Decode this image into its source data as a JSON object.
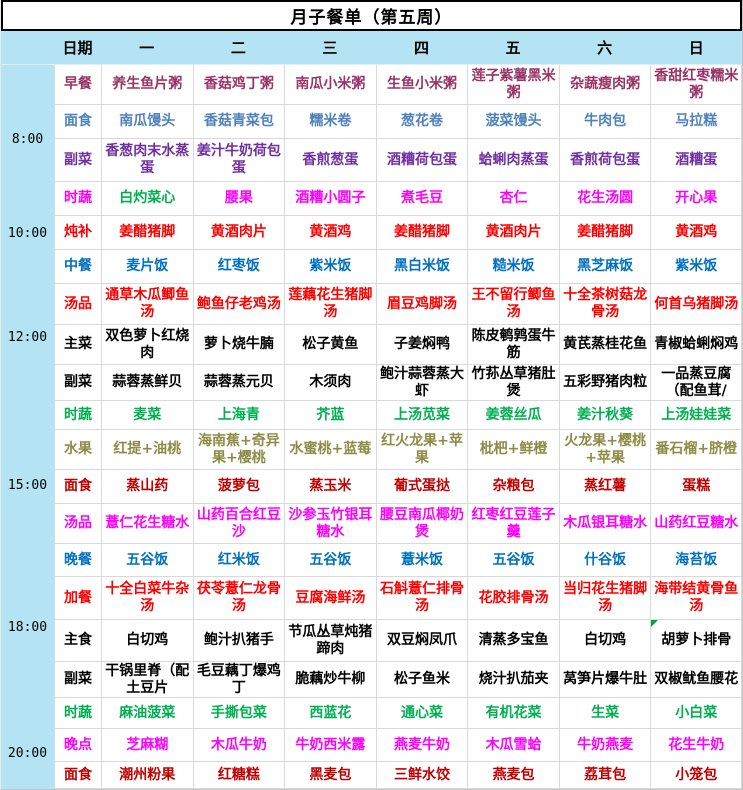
{
  "title": "月子餐单（第五周）",
  "header": {
    "date_label": "日期",
    "days": [
      "一",
      "二",
      "三",
      "四",
      "五",
      "六",
      "日"
    ]
  },
  "time_markers": [
    "8:00",
    "10:00",
    "12:00",
    "15:00",
    "18:00",
    "20:00"
  ],
  "colors": {
    "header_bg": "#B4E3F3",
    "time_strip_bg": "#B4E3F3",
    "grid_line": "#D9D9D9",
    "comment_marker": "#00A33C",
    "plum": "#993366",
    "soft_blue": "#4F81BD",
    "purple": "#7030A0",
    "magenta": "#FF00FF",
    "green": "#00B050",
    "red": "#FF0000",
    "blue": "#0070C0",
    "black": "#000000",
    "olive": "#8C8C46",
    "dark_red": "#C00000"
  },
  "rows": [
    {
      "label": "早餐",
      "color": "#993366",
      "cells": [
        "养生鱼片粥",
        "香菇鸡丁粥",
        "南瓜小米粥",
        "生鱼小米粥",
        "莲子紫薯黑米粥",
        "杂蔬瘦肉粥",
        "香甜红枣糯米粥"
      ]
    },
    {
      "label": "面食",
      "color": "#4F81BD",
      "cells": [
        "南瓜馒头",
        "香菇青菜包",
        "糯米卷",
        "葱花卷",
        "菠菜馒头",
        "牛肉包",
        "马拉糕"
      ]
    },
    {
      "label": "副菜",
      "color": "#7030A0",
      "cells": [
        "香葱肉末水蒸蛋",
        "姜汁牛奶荷包蛋",
        "香煎葱蛋",
        "酒糟荷包蛋",
        "蛤蜊肉蒸蛋",
        "香煎荷包蛋",
        "酒糟蛋"
      ]
    },
    {
      "label": "时蔬",
      "color": "#FF00FF",
      "cells": [
        "白灼菜心",
        "腰果",
        "酒糟小圆子",
        "煮毛豆",
        "杏仁",
        "花生汤圆",
        "开心果"
      ],
      "cell_colors": {
        "0": "#00B050"
      }
    },
    {
      "label": "炖补",
      "color": "#FF0000",
      "cells": [
        "姜醋猪脚",
        "黄酒肉片",
        "黄酒鸡",
        "姜醋猪脚",
        "黄酒肉片",
        "姜醋猪脚",
        "黄酒鸡"
      ]
    },
    {
      "label": "中餐",
      "color": "#0070C0",
      "cells": [
        "麦片饭",
        "红枣饭",
        "紫米饭",
        "黑白米饭",
        "糙米饭",
        "黑芝麻饭",
        "紫米饭"
      ]
    },
    {
      "label": "汤品",
      "color": "#FF0000",
      "cells": [
        "通草木瓜鲫鱼汤",
        "鲍鱼仔老鸡汤",
        "莲藕花生猪脚汤",
        "眉豆鸡脚汤",
        "王不留行鲫鱼汤",
        "十全茶树菇龙骨汤",
        "何首乌猪脚汤"
      ]
    },
    {
      "label": "主菜",
      "color": "#000000",
      "cells": [
        "双色萝卜红烧肉",
        "萝卜烧牛腩",
        "松子黄鱼",
        "子姜焖鸭",
        "陈皮鹌鹑蛋牛筋",
        "黄芪蒸桂花鱼",
        "青椒蛤蜊焖鸡"
      ]
    },
    {
      "label": "副菜",
      "color": "#000000",
      "cells": [
        "蒜蓉蒸鲜贝",
        "蒜蓉蒸元贝",
        "木须肉",
        "鲍汁蒜蓉蒸大虾",
        "竹荪丛草猪肚煲",
        "五彩野猪肉粒",
        "一品蒸豆腐（配鱼茸/"
      ]
    },
    {
      "label": "时蔬",
      "color": "#00B050",
      "cells": [
        "麦菜",
        "上海青",
        "芥蓝",
        "上汤苋菜",
        "姜蓉丝瓜",
        "姜汁秋葵",
        "上汤娃娃菜"
      ]
    },
    {
      "label": "水果",
      "color": "#8C8C46",
      "cells": [
        "红提+油桃",
        "海南蕉+奇异果+樱桃",
        "水蜜桃+蓝莓",
        "红火龙果+苹果",
        "枇杷+鲜橙",
        "火龙果+樱桃+苹果",
        "番石榴+脐橙"
      ]
    },
    {
      "label": "面食",
      "color": "#C00000",
      "cells": [
        "蒸山药",
        "菠萝包",
        "蒸玉米",
        "葡式蛋挞",
        "杂粮包",
        "蒸红薯",
        "蛋糕"
      ]
    },
    {
      "label": "汤品",
      "color": "#FF00FF",
      "cells": [
        "薏仁花生糖水",
        "山药百合红豆沙",
        "沙参玉竹银耳糖水",
        "腰豆南瓜椰奶煲",
        "红枣红豆莲子羹",
        "木瓜银耳糖水",
        "山药红豆糖水"
      ]
    },
    {
      "label": "晚餐",
      "color": "#0070C0",
      "cells": [
        "五谷饭",
        "红米饭",
        "五谷饭",
        "薏米饭",
        "五谷饭",
        "什谷饭",
        "海苔饭"
      ]
    },
    {
      "label": "加餐",
      "color": "#FF0000",
      "cells": [
        "十全白菜牛杂汤",
        "茯苓薏仁龙骨汤",
        "豆腐海鲜汤",
        "石斛薏仁排骨汤",
        "花胶排骨汤",
        "当归花生猪脚汤",
        "海带结黄骨鱼汤"
      ]
    },
    {
      "label": "主食",
      "color": "#000000",
      "cells": [
        "白切鸡",
        "鲍汁扒猪手",
        "节瓜丛草炖猪蹄肉",
        "双豆焖凤爪",
        "清蒸多宝鱼",
        "白切鸡",
        "胡萝卜排骨"
      ],
      "comment_marker_col": 6
    },
    {
      "label": "副菜",
      "color": "#000000",
      "cells": [
        "干锅里脊（配土豆片",
        "毛豆藕丁爆鸡丁",
        "脆藕炒牛柳",
        "松子鱼米",
        "烧汁扒茄夹",
        "莴笋片爆牛肚",
        "双椒鱿鱼腰花"
      ]
    },
    {
      "label": "时蔬",
      "color": "#00B050",
      "cells": [
        "麻油菠菜",
        "手撕包菜",
        "西蓝花",
        "通心菜",
        "有机花菜",
        "生菜",
        "小白菜"
      ]
    },
    {
      "label": "晚点",
      "color": "#FF00FF",
      "cells": [
        "芝麻糊",
        "木瓜牛奶",
        "牛奶西米露",
        "燕麦牛奶",
        "木瓜雪蛤",
        "牛奶燕麦",
        "花生牛奶"
      ]
    },
    {
      "label": "面食",
      "color": "#C00000",
      "cells": [
        "潮州粉果",
        "红糖糕",
        "黑麦包",
        "三鲜水饺",
        "燕麦包",
        "荔茸包",
        "小笼包"
      ]
    }
  ]
}
